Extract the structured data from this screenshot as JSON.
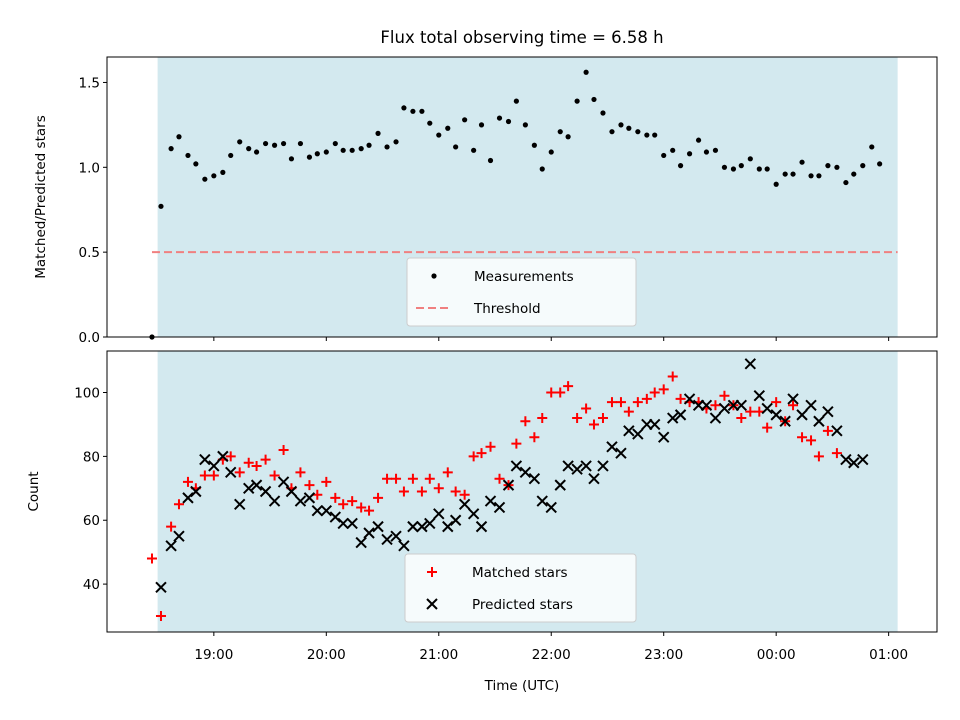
{
  "title": "Flux total observing time = 6.58 h",
  "colors": {
    "shade": "#d3e9ef",
    "measurements": "#000000",
    "threshold": "#f08080",
    "matched": "#ff0000",
    "predicted": "#000000"
  },
  "chart_data": [
    {
      "type": "scatter",
      "ylabel": "Matched/Predicted stars",
      "ylim": [
        0,
        1.65
      ],
      "yticks": [
        0.0,
        0.5,
        1.0,
        1.5
      ],
      "ytick_labels": [
        "0.0",
        "0.5",
        "1.0",
        "1.5"
      ],
      "xlim": [
        18.05,
        1.43
      ],
      "observing_span": [
        18.5,
        1.08
      ],
      "threshold": 0.5,
      "legend": {
        "placement": "bottom-center",
        "entries": [
          "Measurements",
          "Threshold"
        ]
      },
      "series": [
        {
          "name": "Measurements",
          "marker": "dot",
          "points": [
            [
              18.45,
              0.0
            ],
            [
              18.53,
              0.77
            ],
            [
              18.62,
              1.11
            ],
            [
              18.69,
              1.18
            ],
            [
              18.77,
              1.07
            ],
            [
              18.84,
              1.02
            ],
            [
              18.92,
              0.93
            ],
            [
              19.0,
              0.95
            ],
            [
              19.08,
              0.97
            ],
            [
              19.15,
              1.07
            ],
            [
              19.23,
              1.15
            ],
            [
              19.31,
              1.11
            ],
            [
              19.38,
              1.09
            ],
            [
              19.46,
              1.14
            ],
            [
              19.54,
              1.13
            ],
            [
              19.62,
              1.14
            ],
            [
              19.69,
              1.05
            ],
            [
              19.77,
              1.14
            ],
            [
              19.85,
              1.06
            ],
            [
              19.92,
              1.08
            ],
            [
              20.0,
              1.09
            ],
            [
              20.08,
              1.14
            ],
            [
              20.15,
              1.1
            ],
            [
              20.23,
              1.1
            ],
            [
              20.31,
              1.11
            ],
            [
              20.38,
              1.13
            ],
            [
              20.46,
              1.2
            ],
            [
              20.54,
              1.12
            ],
            [
              20.62,
              1.15
            ],
            [
              20.69,
              1.35
            ],
            [
              20.77,
              1.33
            ],
            [
              20.85,
              1.33
            ],
            [
              20.92,
              1.26
            ],
            [
              21.0,
              1.19
            ],
            [
              21.08,
              1.23
            ],
            [
              21.15,
              1.12
            ],
            [
              21.23,
              1.28
            ],
            [
              21.31,
              1.1
            ],
            [
              21.38,
              1.25
            ],
            [
              21.46,
              1.04
            ],
            [
              21.54,
              1.29
            ],
            [
              21.62,
              1.27
            ],
            [
              21.69,
              1.39
            ],
            [
              21.77,
              1.25
            ],
            [
              21.85,
              1.13
            ],
            [
              21.92,
              0.99
            ],
            [
              22.0,
              1.09
            ],
            [
              22.08,
              1.21
            ],
            [
              22.15,
              1.18
            ],
            [
              22.23,
              1.39
            ],
            [
              22.31,
              1.56
            ],
            [
              22.38,
              1.4
            ],
            [
              22.46,
              1.32
            ],
            [
              22.54,
              1.21
            ],
            [
              22.62,
              1.25
            ],
            [
              22.69,
              1.23
            ],
            [
              22.77,
              1.21
            ],
            [
              22.85,
              1.19
            ],
            [
              22.92,
              1.19
            ],
            [
              23.0,
              1.07
            ],
            [
              23.08,
              1.1
            ],
            [
              23.15,
              1.01
            ],
            [
              23.23,
              1.08
            ],
            [
              23.31,
              1.16
            ],
            [
              23.38,
              1.09
            ],
            [
              23.46,
              1.1
            ],
            [
              23.54,
              1.0
            ],
            [
              23.62,
              0.99
            ],
            [
              23.69,
              1.01
            ],
            [
              23.77,
              1.05
            ],
            [
              23.85,
              0.99
            ],
            [
              23.92,
              0.99
            ],
            [
              24.0,
              0.9
            ],
            [
              24.08,
              0.96
            ],
            [
              24.15,
              0.96
            ],
            [
              24.23,
              1.03
            ],
            [
              24.31,
              0.95
            ],
            [
              24.38,
              0.95
            ],
            [
              24.46,
              1.01
            ],
            [
              24.54,
              1.0
            ],
            [
              24.62,
              0.91
            ],
            [
              24.69,
              0.96
            ],
            [
              24.77,
              1.01
            ],
            [
              24.85,
              1.12
            ],
            [
              24.92,
              1.02
            ]
          ]
        }
      ]
    },
    {
      "type": "scatter",
      "ylabel": "Count",
      "xlabel": "Time (UTC)",
      "ylim": [
        25,
        113
      ],
      "yticks": [
        40,
        60,
        80,
        100
      ],
      "ytick_labels": [
        "40",
        "60",
        "80",
        "100"
      ],
      "xlim": [
        18.05,
        1.43
      ],
      "xticks": [
        19.0,
        20.0,
        21.0,
        22.0,
        23.0,
        0.0,
        1.0
      ],
      "xtick_labels": [
        "19:00",
        "20:00",
        "21:00",
        "22:00",
        "23:00",
        "00:00",
        "01:00"
      ],
      "observing_span": [
        18.5,
        1.08
      ],
      "legend": {
        "placement": "bottom-center",
        "entries": [
          "Matched stars",
          "Predicted stars"
        ]
      },
      "series": [
        {
          "name": "Matched stars",
          "marker": "plus",
          "points": [
            [
              18.45,
              48
            ],
            [
              18.53,
              30
            ],
            [
              18.62,
              58
            ],
            [
              18.69,
              65
            ],
            [
              18.77,
              72
            ],
            [
              18.84,
              70
            ],
            [
              18.92,
              74
            ],
            [
              19.0,
              74
            ],
            [
              19.08,
              79
            ],
            [
              19.15,
              80
            ],
            [
              19.23,
              75
            ],
            [
              19.31,
              78
            ],
            [
              19.38,
              77
            ],
            [
              19.46,
              79
            ],
            [
              19.54,
              74
            ],
            [
              19.62,
              82
            ],
            [
              19.69,
              70
            ],
            [
              19.77,
              75
            ],
            [
              19.85,
              71
            ],
            [
              19.92,
              68
            ],
            [
              20.0,
              72
            ],
            [
              20.08,
              67
            ],
            [
              20.15,
              65
            ],
            [
              20.23,
              66
            ],
            [
              20.31,
              64
            ],
            [
              20.38,
              63
            ],
            [
              20.46,
              67
            ],
            [
              20.54,
              73
            ],
            [
              20.62,
              73
            ],
            [
              20.69,
              69
            ],
            [
              20.77,
              73
            ],
            [
              20.85,
              69
            ],
            [
              20.92,
              73
            ],
            [
              21.0,
              70
            ],
            [
              21.08,
              75
            ],
            [
              21.15,
              69
            ],
            [
              21.23,
              68
            ],
            [
              21.31,
              80
            ],
            [
              21.38,
              81
            ],
            [
              21.46,
              83
            ],
            [
              21.54,
              73
            ],
            [
              21.62,
              71
            ],
            [
              21.69,
              84
            ],
            [
              21.77,
              91
            ],
            [
              21.85,
              86
            ],
            [
              21.92,
              92
            ],
            [
              22.0,
              100
            ],
            [
              22.08,
              100
            ],
            [
              22.15,
              102
            ],
            [
              22.23,
              92
            ],
            [
              22.31,
              95
            ],
            [
              22.38,
              90
            ],
            [
              22.46,
              92
            ],
            [
              22.54,
              97
            ],
            [
              22.62,
              97
            ],
            [
              22.69,
              94
            ],
            [
              22.77,
              97
            ],
            [
              22.85,
              98
            ],
            [
              22.92,
              100
            ],
            [
              23.0,
              101
            ],
            [
              23.08,
              105
            ],
            [
              23.15,
              98
            ],
            [
              23.23,
              97
            ],
            [
              23.31,
              97
            ],
            [
              23.38,
              95
            ],
            [
              23.46,
              96
            ],
            [
              23.54,
              99
            ],
            [
              23.62,
              96
            ],
            [
              23.69,
              92
            ],
            [
              23.77,
              94
            ],
            [
              23.85,
              94
            ],
            [
              23.92,
              89
            ],
            [
              24.0,
              97
            ],
            [
              24.08,
              91
            ],
            [
              24.15,
              96
            ],
            [
              24.23,
              86
            ],
            [
              24.31,
              85
            ],
            [
              24.38,
              80
            ],
            [
              24.46,
              88
            ],
            [
              24.54,
              81
            ]
          ]
        },
        {
          "name": "Predicted stars",
          "marker": "x",
          "points": [
            [
              18.53,
              39
            ],
            [
              18.62,
              52
            ],
            [
              18.69,
              55
            ],
            [
              18.77,
              67
            ],
            [
              18.84,
              69
            ],
            [
              18.92,
              79
            ],
            [
              19.0,
              77
            ],
            [
              19.08,
              80
            ],
            [
              19.15,
              75
            ],
            [
              19.23,
              65
            ],
            [
              19.31,
              70
            ],
            [
              19.38,
              71
            ],
            [
              19.46,
              69
            ],
            [
              19.54,
              66
            ],
            [
              19.62,
              72
            ],
            [
              19.69,
              69
            ],
            [
              19.77,
              66
            ],
            [
              19.85,
              67
            ],
            [
              19.92,
              63
            ],
            [
              20.0,
              63
            ],
            [
              20.08,
              61
            ],
            [
              20.15,
              59
            ],
            [
              20.23,
              59
            ],
            [
              20.31,
              53
            ],
            [
              20.38,
              56
            ],
            [
              20.46,
              58
            ],
            [
              20.54,
              54
            ],
            [
              20.62,
              55
            ],
            [
              20.69,
              52
            ],
            [
              20.77,
              58
            ],
            [
              20.85,
              58
            ],
            [
              20.92,
              59
            ],
            [
              21.0,
              62
            ],
            [
              21.08,
              58
            ],
            [
              21.15,
              60
            ],
            [
              21.23,
              65
            ],
            [
              21.31,
              62
            ],
            [
              21.38,
              58
            ],
            [
              21.46,
              66
            ],
            [
              21.54,
              64
            ],
            [
              21.62,
              71
            ],
            [
              21.69,
              77
            ],
            [
              21.77,
              75
            ],
            [
              21.85,
              73
            ],
            [
              21.92,
              66
            ],
            [
              22.0,
              64
            ],
            [
              22.08,
              71
            ],
            [
              22.15,
              77
            ],
            [
              22.23,
              76
            ],
            [
              22.31,
              77
            ],
            [
              22.38,
              73
            ],
            [
              22.46,
              77
            ],
            [
              22.54,
              83
            ],
            [
              22.62,
              81
            ],
            [
              22.69,
              88
            ],
            [
              22.77,
              87
            ],
            [
              22.85,
              90
            ],
            [
              22.92,
              90
            ],
            [
              23.0,
              86
            ],
            [
              23.08,
              92
            ],
            [
              23.15,
              93
            ],
            [
              23.23,
              98
            ],
            [
              23.31,
              96
            ],
            [
              23.38,
              96
            ],
            [
              23.46,
              92
            ],
            [
              23.54,
              95
            ],
            [
              23.62,
              96
            ],
            [
              23.69,
              96
            ],
            [
              23.77,
              109
            ],
            [
              23.85,
              99
            ],
            [
              23.92,
              95
            ],
            [
              24.0,
              93
            ],
            [
              24.08,
              91
            ],
            [
              24.15,
              98
            ],
            [
              24.23,
              93
            ],
            [
              24.31,
              96
            ],
            [
              24.38,
              91
            ],
            [
              24.46,
              94
            ],
            [
              24.54,
              88
            ],
            [
              24.62,
              79
            ],
            [
              24.69,
              78
            ],
            [
              24.77,
              79
            ]
          ]
        }
      ]
    }
  ]
}
